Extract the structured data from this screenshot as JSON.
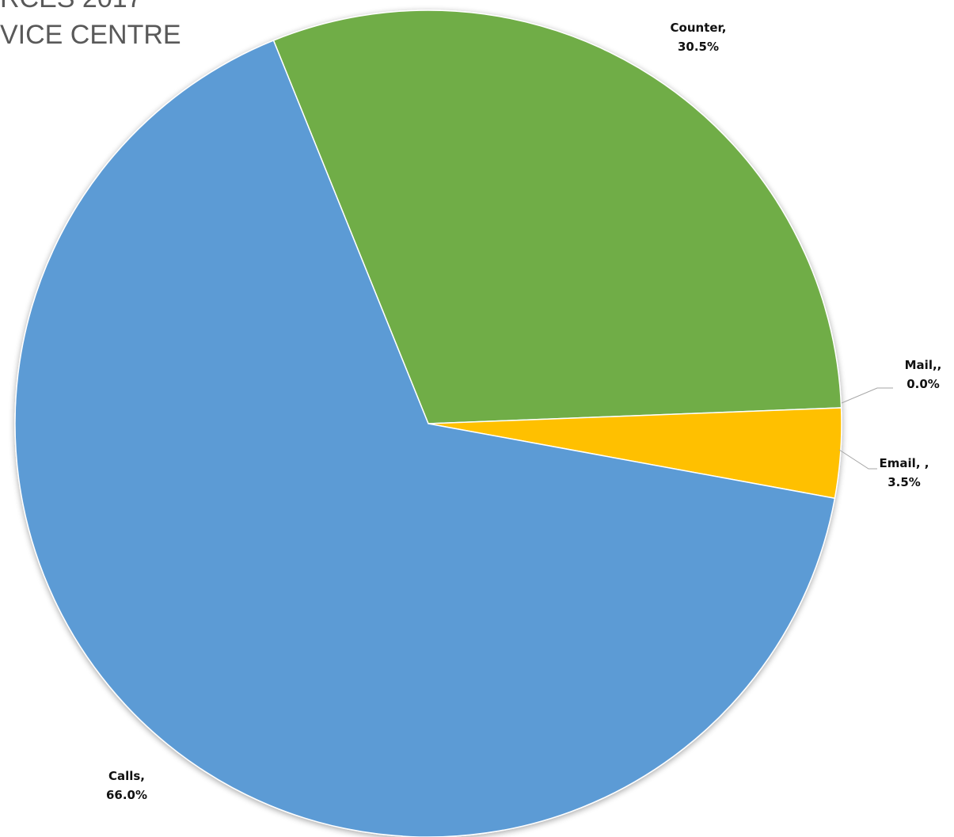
{
  "title_lines": [
    "RCES 2017",
    "VICE CENTRE"
  ],
  "chart_data": {
    "type": "pie",
    "title": "",
    "legend": "none",
    "start_angle_deg": -112.0,
    "direction": "clockwise",
    "slices": [
      {
        "name": "Counter",
        "value": 30.5,
        "color": "#70AD47",
        "label_name": "Counter,",
        "label_value": "30.5%"
      },
      {
        "name": "Mail",
        "value": 0.0,
        "color": "#A5A5A5",
        "label_name": "Mail,,",
        "label_value": "0.0%"
      },
      {
        "name": "Email",
        "value": 3.5,
        "color": "#FFC000",
        "label_name": "Email, ,",
        "label_value": "3.5%"
      },
      {
        "name": "Calls",
        "value": 66.0,
        "color": "#5B9BD5",
        "label_name": "Calls,",
        "label_value": "66.0%"
      }
    ]
  }
}
